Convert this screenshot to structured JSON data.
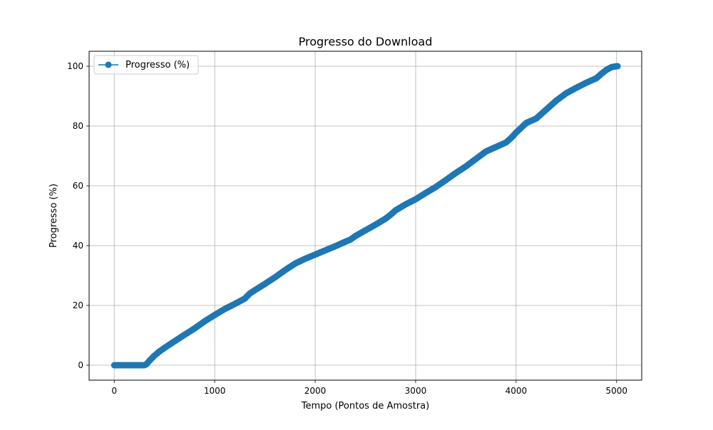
{
  "chart_data": {
    "type": "line",
    "title": "Progresso do Download",
    "xlabel": "Tempo (Pontos de Amostra)",
    "ylabel": "Progresso (%)",
    "xlim": [
      -250,
      5250
    ],
    "ylim": [
      -5,
      105
    ],
    "xticks": [
      0,
      1000,
      2000,
      3000,
      4000,
      5000
    ],
    "yticks": [
      0,
      20,
      40,
      60,
      80,
      100
    ],
    "grid": true,
    "legend_position": "top-left",
    "series": [
      {
        "name": "Progresso (%)",
        "color": "#1f77b4",
        "marker": "circle",
        "x": [
          0,
          100,
          200,
          300,
          320,
          350,
          400,
          450,
          500,
          600,
          700,
          800,
          900,
          1000,
          1100,
          1200,
          1300,
          1350,
          1400,
          1500,
          1600,
          1700,
          1800,
          1900,
          2000,
          2100,
          2200,
          2300,
          2350,
          2400,
          2500,
          2600,
          2700,
          2750,
          2800,
          2850,
          2900,
          3000,
          3100,
          3200,
          3300,
          3400,
          3500,
          3600,
          3700,
          3800,
          3900,
          3950,
          4000,
          4100,
          4200,
          4250,
          4300,
          4400,
          4500,
          4600,
          4700,
          4800,
          4850,
          4900,
          4950,
          5000,
          5010
        ],
        "y": [
          0,
          0,
          0,
          0,
          0.3,
          1.5,
          3.2,
          4.6,
          5.8,
          8.0,
          10.2,
          12.3,
          14.7,
          16.8,
          18.8,
          20.5,
          22.3,
          24.0,
          25.1,
          27.2,
          29.4,
          31.8,
          34.0,
          35.6,
          37.0,
          38.4,
          39.8,
          41.3,
          42.0,
          43.2,
          45.1,
          47.0,
          49.0,
          50.3,
          51.8,
          52.8,
          53.8,
          55.5,
          57.6,
          59.6,
          61.9,
          64.3,
          66.5,
          69.0,
          71.5,
          73.0,
          74.5,
          76.0,
          77.8,
          81.0,
          82.5,
          84.0,
          85.5,
          88.5,
          91.0,
          92.8,
          94.5,
          96.0,
          97.5,
          98.8,
          99.7,
          100,
          100
        ]
      }
    ]
  }
}
